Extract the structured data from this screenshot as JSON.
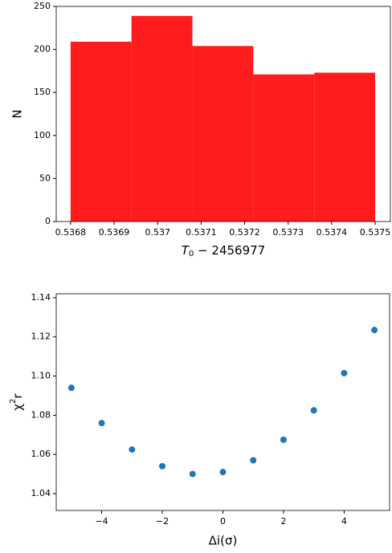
{
  "chart_data": [
    {
      "type": "histogram",
      "color": "#ff1c1c",
      "xlabel": {
        "main": "T",
        "sub": "0",
        "rest": " − 2456977"
      },
      "ylabel": "N",
      "bins": [
        0.5368,
        0.53694,
        0.53708,
        0.53722,
        0.53736,
        0.5375
      ],
      "values": [
        209,
        239,
        204,
        171,
        173
      ],
      "xlim": [
        0.536767,
        0.537535
      ],
      "xticks": [
        0.5368,
        0.5369,
        0.537,
        0.5371,
        0.5372,
        0.5373,
        0.5374,
        0.5375
      ],
      "ylim": [
        0,
        250
      ],
      "yticks": [
        0,
        50,
        100,
        150,
        200,
        250
      ]
    },
    {
      "type": "scatter",
      "color": "#1f77b4",
      "xlabel": "Δi(σ)",
      "ylabel": {
        "main": "χ",
        "sup": "2",
        "sub": "r"
      },
      "x": [
        -5,
        -4,
        -3,
        -2,
        -1,
        0,
        1,
        2,
        3,
        4,
        5
      ],
      "values": [
        1.094,
        1.076,
        1.0625,
        1.054,
        1.05,
        1.051,
        1.057,
        1.0675,
        1.0825,
        1.1015,
        1.1235
      ],
      "xlim": [
        -5.5,
        5.5
      ],
      "xticks": [
        {
          "value": -4,
          "label": "−4"
        },
        {
          "value": -2,
          "label": "−2"
        },
        0,
        2,
        4
      ],
      "ylim": [
        1.0314,
        1.142
      ],
      "yticks": [
        1.04,
        1.06,
        1.08,
        {
          "value": 1.1,
          "label": "1.10"
        },
        1.12,
        1.14
      ]
    }
  ]
}
